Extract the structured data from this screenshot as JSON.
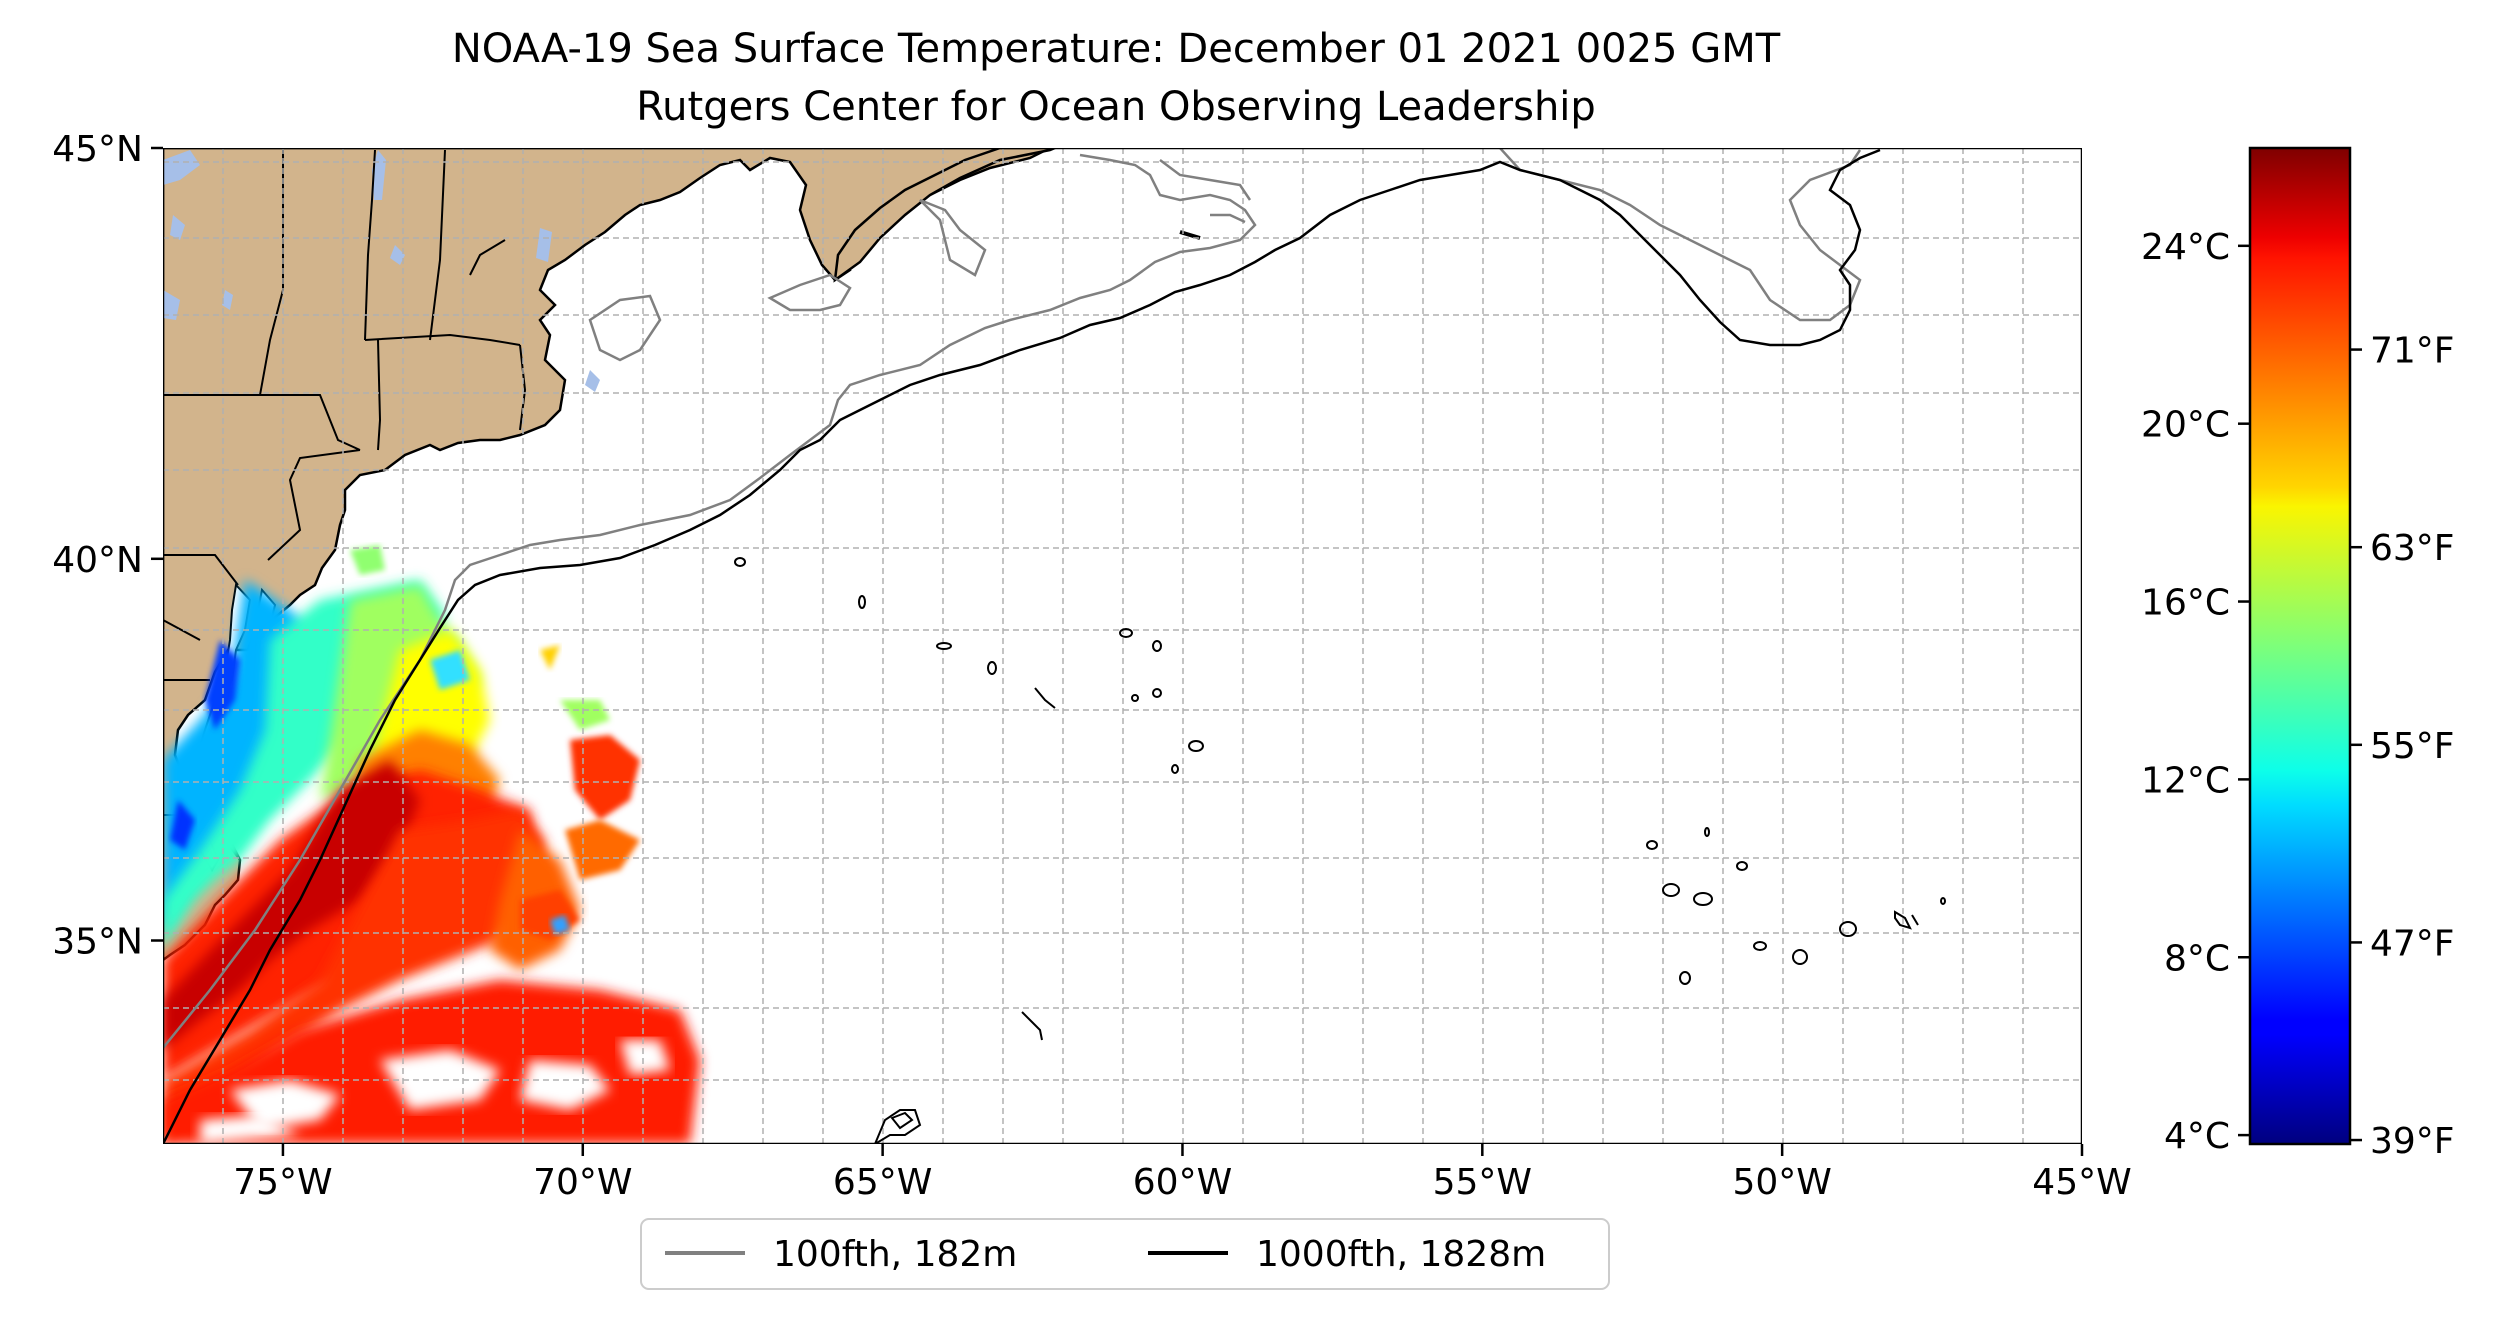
{
  "title": {
    "line1": "NOAA-19 Sea Surface Temperature: December 01 2021 0025 GMT",
    "line2": "Rutgers Center for Ocean Observing Leadership"
  },
  "map": {
    "x_ticks": [
      {
        "lon": -75,
        "label": "75°W"
      },
      {
        "lon": -70,
        "label": "70°W"
      },
      {
        "lon": -65,
        "label": "65°W"
      },
      {
        "lon": -60,
        "label": "60°W"
      },
      {
        "lon": -55,
        "label": "55°W"
      },
      {
        "lon": -50,
        "label": "50°W"
      },
      {
        "lon": -45,
        "label": "45°W"
      }
    ],
    "y_ticks": [
      {
        "lat": 45,
        "label": "45°N"
      },
      {
        "lat": 40,
        "label": "40°N"
      },
      {
        "lat": 35,
        "label": "35°N"
      }
    ],
    "lon_range": [
      -77,
      -45
    ],
    "lat_range": [
      32.2,
      45
    ],
    "gridlines": true,
    "land_color": "#D2B48C",
    "lake_color": "#A6BFE8"
  },
  "legend": {
    "items": [
      {
        "label": "100fth, 182m",
        "color": "#808080"
      },
      {
        "label": "1000fth, 1828m",
        "color": "#000000"
      }
    ],
    "placement": "bottom-center"
  },
  "colorbar": {
    "colormap": "jet",
    "celsius_range": [
      3.8,
      26.2
    ],
    "celsius_ticks": [
      {
        "value": 4,
        "label": "4°C"
      },
      {
        "value": 8,
        "label": "8°C"
      },
      {
        "value": 12,
        "label": "12°C"
      },
      {
        "value": 16,
        "label": "16°C"
      },
      {
        "value": 20,
        "label": "20°C"
      },
      {
        "value": 24,
        "label": "24°C"
      }
    ],
    "fahrenheit_ticks": [
      {
        "value": 39,
        "label": "39°F"
      },
      {
        "value": 47,
        "label": "47°F"
      },
      {
        "value": 55,
        "label": "55°F"
      },
      {
        "value": 63,
        "label": "63°F"
      },
      {
        "value": 71,
        "label": "71°F"
      }
    ]
  },
  "colors": {
    "isobath_100": "#808080",
    "isobath_1000": "#000000",
    "grid": "#b0b0b0"
  }
}
